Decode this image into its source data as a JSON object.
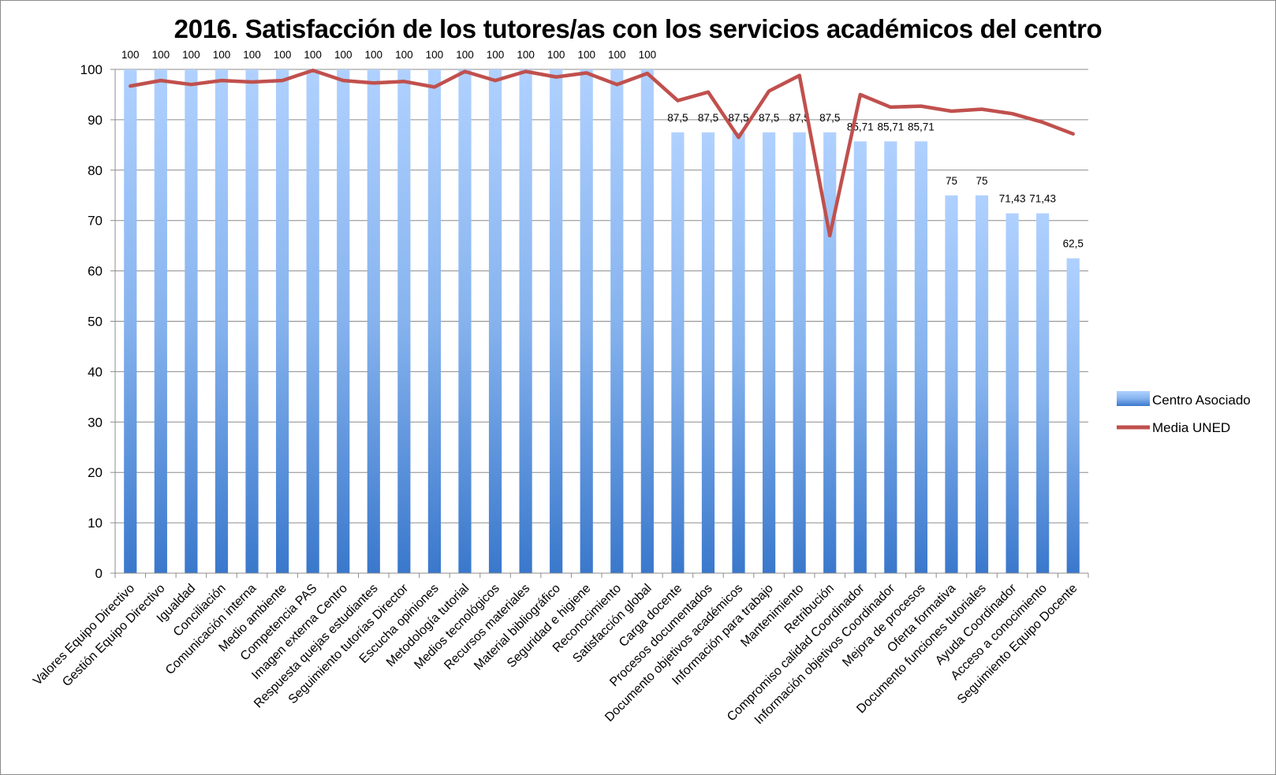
{
  "chart_data": {
    "type": "bar",
    "title": "2016. Satisfacción de los tutores/as con los servicios académicos del centro",
    "xlabel": "",
    "ylabel": "",
    "ylim": [
      0,
      100
    ],
    "ytick_step": 10,
    "grid": true,
    "legend_position": "right",
    "categories": [
      "Valores Equipo Directivo",
      "Gestión Equipo Directivo",
      "Igualdad",
      "Conciliación",
      "Comunicación interna",
      "Medio ambiente",
      "Competencia PAS",
      "Imagen externa Centro",
      "Respuesta quejas estudiantes",
      "Seguimiento tutorías Director",
      "Escucha opiniones",
      "Metodología tutorial",
      "Medios tecnológicos",
      "Recursos materiales",
      "Material bibliográfico",
      "Seguridad e higiene",
      "Reconocimiento",
      "Satisfacción global",
      "Carga docente",
      "Procesos documentados",
      "Documento objetivos académicos",
      "Información para trabajo",
      "Mantenimiento",
      "Retribución",
      "Compromiso calidad  Coordinador",
      "Información objetivos Coordinador",
      "Mejora de procesos",
      "Oferta formativa",
      "Documento funciones tutoriales",
      "Ayuda Coordinador",
      "Acceso a conocimiento",
      "Seguimiento Equipo Docente"
    ],
    "series": [
      {
        "name": "Centro Asociado",
        "kind": "bar",
        "color": "#4a86d4",
        "values": [
          100,
          100,
          100,
          100,
          100,
          100,
          100,
          100,
          100,
          100,
          100,
          100,
          100,
          100,
          100,
          100,
          100,
          100,
          87.5,
          87.5,
          87.5,
          87.5,
          87.5,
          87.5,
          85.71,
          85.71,
          85.71,
          75,
          75,
          71.43,
          71.43,
          62.5
        ],
        "labels": [
          "100",
          "100",
          "100",
          "100",
          "100",
          "100",
          "100",
          "100",
          "100",
          "100",
          "100",
          "100",
          "100",
          "100",
          "100",
          "100",
          "100",
          "100",
          "87,5",
          "87,5",
          "87,5",
          "87,5",
          "87,5",
          "87,5",
          "85,71",
          "85,71",
          "85,71",
          "75",
          "75",
          "71,43",
          "71,43",
          "62,5"
        ]
      },
      {
        "name": "Media UNED",
        "kind": "line",
        "color": "#c0504d",
        "values": [
          96.7,
          97.8,
          97.0,
          97.8,
          97.5,
          97.8,
          99.8,
          97.8,
          97.3,
          97.6,
          96.5,
          99.6,
          97.8,
          99.6,
          98.5,
          99.3,
          97.0,
          99.2,
          93.8,
          95.5,
          86.5,
          95.7,
          98.8,
          67.0,
          95.0,
          92.5,
          92.7,
          91.7,
          92.1,
          91.2,
          89.5,
          87.2
        ]
      }
    ]
  }
}
